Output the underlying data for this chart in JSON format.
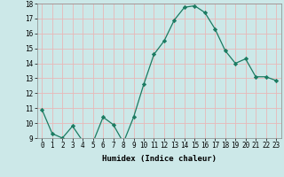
{
  "x": [
    0,
    1,
    2,
    3,
    4,
    5,
    6,
    7,
    8,
    9,
    10,
    11,
    12,
    13,
    14,
    15,
    16,
    17,
    18,
    19,
    20,
    21,
    22,
    23
  ],
  "y": [
    10.9,
    9.3,
    9.0,
    9.8,
    8.8,
    8.7,
    10.4,
    9.9,
    8.7,
    10.4,
    12.6,
    14.6,
    15.5,
    16.9,
    17.75,
    17.85,
    17.4,
    16.3,
    14.85,
    14.0,
    14.3,
    13.1,
    13.1,
    12.85
  ],
  "line_color": "#1b7b61",
  "marker": "D",
  "marker_size": 2.2,
  "bg_color": "#cce8e8",
  "grid_color": "#e8b8b8",
  "xlabel": "Humidex (Indice chaleur)",
  "ylim": [
    9,
    18
  ],
  "xlim": [
    -0.5,
    23.5
  ],
  "yticks": [
    9,
    10,
    11,
    12,
    13,
    14,
    15,
    16,
    17,
    18
  ],
  "xticks": [
    0,
    1,
    2,
    3,
    4,
    5,
    6,
    7,
    8,
    9,
    10,
    11,
    12,
    13,
    14,
    15,
    16,
    17,
    18,
    19,
    20,
    21,
    22,
    23
  ],
  "xlabel_fontsize": 6.5,
  "tick_fontsize": 5.5,
  "linewidth": 0.9
}
